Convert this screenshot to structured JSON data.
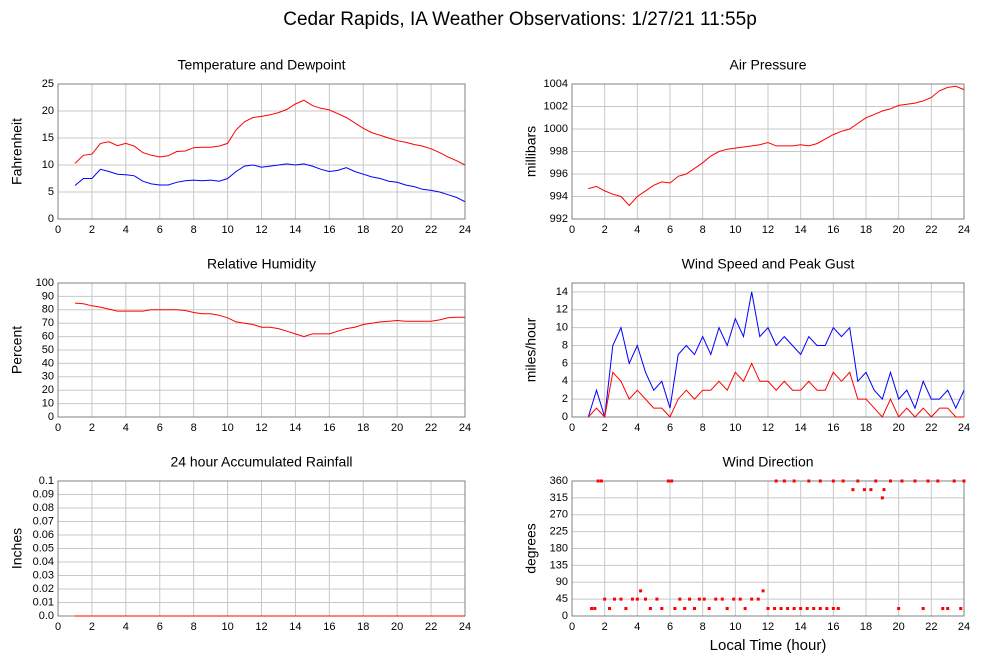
{
  "title": "Cedar Rapids, IA Weather Observations: 1/27/21 11:55p",
  "chart_data": [
    {
      "type": "line",
      "title": "Temperature and Dewpoint",
      "ylabel": "Fahrenheit",
      "x": [
        1,
        1.5,
        2,
        2.5,
        3,
        3.5,
        4,
        4.5,
        5,
        5.5,
        6,
        6.5,
        7,
        7.5,
        8,
        8.5,
        9,
        9.5,
        10,
        10.5,
        11,
        11.5,
        12,
        12.5,
        13,
        13.5,
        14,
        14.5,
        15,
        15.5,
        16,
        16.5,
        17,
        17.5,
        18,
        18.5,
        19,
        19.5,
        20,
        20.5,
        21,
        21.5,
        22,
        22.5,
        23,
        23.5,
        24
      ],
      "series": [
        {
          "color": "#ff0000",
          "values": [
            10.3,
            11.8,
            12,
            14,
            14.3,
            13.6,
            14,
            13.5,
            12.3,
            11.8,
            11.5,
            11.7,
            12.5,
            12.6,
            13.2,
            13.3,
            13.3,
            13.5,
            14,
            16.5,
            18,
            18.8,
            19,
            19.3,
            19.7,
            20.3,
            21.3,
            22,
            21,
            20.5,
            20.2,
            19.5,
            18.8,
            17.8,
            16.8,
            16,
            15.5,
            15,
            14.5,
            14.2,
            13.8,
            13.5,
            13,
            12.3,
            11.5,
            10.8,
            10
          ]
        },
        {
          "color": "#0000ff",
          "values": [
            6.2,
            7.5,
            7.5,
            9.2,
            8.8,
            8.3,
            8.2,
            8,
            7,
            6.5,
            6.3,
            6.3,
            6.8,
            7.1,
            7.2,
            7.1,
            7.2,
            7,
            7.5,
            8.8,
            9.8,
            10,
            9.6,
            9.8,
            10,
            10.2,
            10,
            10.2,
            9.8,
            9.2,
            8.8,
            9,
            9.5,
            8.8,
            8.3,
            7.8,
            7.5,
            7,
            6.8,
            6.3,
            6,
            5.5,
            5.3,
            5,
            4.5,
            4,
            3.2
          ]
        }
      ],
      "xlim": [
        0,
        24
      ],
      "xticks": [
        0,
        2,
        4,
        6,
        8,
        10,
        12,
        14,
        16,
        18,
        20,
        22,
        24
      ],
      "ylim": [
        0,
        25
      ],
      "yticks": [
        0,
        5,
        10,
        15,
        20,
        25
      ],
      "grid": true
    },
    {
      "type": "line",
      "title": "Air Pressure",
      "ylabel": "millibars",
      "x": [
        1,
        1.5,
        2,
        2.5,
        3,
        3.5,
        4,
        4.5,
        5,
        5.5,
        6,
        6.5,
        7,
        7.5,
        8,
        8.5,
        9,
        9.5,
        10,
        10.5,
        11,
        11.5,
        12,
        12.5,
        13,
        13.5,
        14,
        14.5,
        15,
        15.5,
        16,
        16.5,
        17,
        17.5,
        18,
        18.5,
        19,
        19.5,
        20,
        20.5,
        21,
        21.5,
        22,
        22.5,
        23,
        23.5,
        24
      ],
      "series": [
        {
          "color": "#ff0000",
          "values": [
            994.7,
            994.9,
            994.5,
            994.2,
            994,
            993.2,
            994,
            994.5,
            995,
            995.3,
            995.2,
            995.8,
            996,
            996.5,
            997,
            997.6,
            998,
            998.2,
            998.3,
            998.4,
            998.5,
            998.6,
            998.8,
            998.5,
            998.5,
            998.5,
            998.6,
            998.5,
            998.7,
            999.1,
            999.5,
            999.8,
            1000,
            1000.5,
            1001,
            1001.3,
            1001.6,
            1001.8,
            1002.1,
            1002.2,
            1002.3,
            1002.5,
            1002.8,
            1003.4,
            1003.7,
            1003.8,
            1003.5
          ]
        }
      ],
      "xlim": [
        0,
        24
      ],
      "xticks": [
        0,
        2,
        4,
        6,
        8,
        10,
        12,
        14,
        16,
        18,
        20,
        22,
        24
      ],
      "ylim": [
        992,
        1004
      ],
      "yticks": [
        992,
        994,
        996,
        998,
        1000,
        1002,
        1004
      ],
      "grid": true
    },
    {
      "type": "line",
      "title": "Relative Humidity",
      "ylabel": "Percent",
      "x": [
        1,
        1.5,
        2,
        2.5,
        3,
        3.5,
        4,
        4.5,
        5,
        5.5,
        6,
        6.5,
        7,
        7.5,
        8,
        8.5,
        9,
        9.5,
        10,
        10.5,
        11,
        11.5,
        12,
        12.5,
        13,
        13.5,
        14,
        14.5,
        15,
        15.5,
        16,
        16.5,
        17,
        17.5,
        18,
        18.5,
        19,
        19.5,
        20,
        20.5,
        21,
        21.5,
        22,
        22.5,
        23,
        23.5,
        24
      ],
      "series": [
        {
          "color": "#ff0000",
          "values": [
            85,
            84.5,
            83,
            82,
            80.5,
            79,
            79,
            79,
            79,
            80,
            80,
            80,
            80,
            79.5,
            78,
            77,
            77,
            76,
            74,
            71,
            70,
            69,
            67,
            67,
            66,
            64,
            62,
            60,
            62,
            62,
            62,
            64,
            66,
            67,
            69,
            70,
            71,
            71.5,
            72,
            71.5,
            71.5,
            71.5,
            71.5,
            72.5,
            74,
            74.5,
            74.5
          ]
        }
      ],
      "xlim": [
        0,
        24
      ],
      "xticks": [
        0,
        2,
        4,
        6,
        8,
        10,
        12,
        14,
        16,
        18,
        20,
        22,
        24
      ],
      "ylim": [
        0,
        100
      ],
      "yticks": [
        0,
        10,
        20,
        30,
        40,
        50,
        60,
        70,
        80,
        90,
        100
      ],
      "grid": true
    },
    {
      "type": "line",
      "title": "Wind Speed and Peak Gust",
      "ylabel": "miles/hour",
      "x": [
        1,
        1.5,
        2,
        2.5,
        3,
        3.5,
        4,
        4.5,
        5,
        5.5,
        6,
        6.5,
        7,
        7.5,
        8,
        8.5,
        9,
        9.5,
        10,
        10.5,
        11,
        11.5,
        12,
        12.5,
        13,
        13.5,
        14,
        14.5,
        15,
        15.5,
        16,
        16.5,
        17,
        17.5,
        18,
        18.5,
        19,
        19.5,
        20,
        20.5,
        21,
        21.5,
        22,
        22.5,
        23,
        23.5,
        24
      ],
      "series": [
        {
          "color": "#0000ff",
          "values": [
            0,
            3,
            0,
            8,
            10,
            6,
            8,
            5,
            3,
            4,
            1,
            7,
            8,
            7,
            9,
            7,
            10,
            8,
            11,
            9,
            14,
            9,
            10,
            8,
            9,
            8,
            7,
            9,
            8,
            8,
            10,
            9,
            10,
            4,
            5,
            3,
            2,
            5,
            2,
            3,
            1,
            4,
            2,
            2,
            3,
            1,
            3
          ]
        },
        {
          "color": "#ff0000",
          "values": [
            0,
            1,
            0,
            5,
            4,
            2,
            3,
            2,
            1,
            1,
            0,
            2,
            3,
            2,
            3,
            3,
            4,
            3,
            5,
            4,
            6,
            4,
            4,
            3,
            4,
            3,
            3,
            4,
            3,
            3,
            5,
            4,
            5,
            2,
            2,
            1,
            0,
            2,
            0,
            1,
            0,
            1,
            0,
            1,
            1,
            0,
            0
          ]
        }
      ],
      "xlim": [
        0,
        24
      ],
      "xticks": [
        0,
        2,
        4,
        6,
        8,
        10,
        12,
        14,
        16,
        18,
        20,
        22,
        24
      ],
      "ylim": [
        0,
        15
      ],
      "yticks": [
        0,
        2,
        4,
        6,
        8,
        10,
        12,
        14
      ],
      "grid": true
    },
    {
      "type": "line",
      "title": "24 hour Accumulated Rainfall",
      "ylabel": "Inches",
      "x": [
        1,
        24
      ],
      "series": [
        {
          "color": "#ff0000",
          "values": [
            0,
            0
          ]
        }
      ],
      "xlim": [
        0,
        24
      ],
      "xticks": [
        0,
        2,
        4,
        6,
        8,
        10,
        12,
        14,
        16,
        18,
        20,
        22,
        24
      ],
      "ylim": [
        0,
        0.1
      ],
      "yticks": [
        {
          "value": 0,
          "label": "0.0"
        },
        0.01,
        0.02,
        0.03,
        0.04,
        0.05,
        0.06,
        0.07,
        0.08,
        0.09,
        0.1
      ],
      "grid": true
    },
    {
      "type": "scatter",
      "title": "Wind Direction",
      "ylabel": "degrees",
      "xlabel": "Local Time (hour)",
      "color": "#ff0000",
      "x": [
        1.2,
        1.4,
        1.6,
        1.8,
        2,
        2.3,
        2.6,
        3,
        3.3,
        3.7,
        4,
        4.2,
        4.5,
        4.8,
        5.2,
        5.5,
        5.9,
        6.1,
        6.3,
        6.6,
        6.9,
        7.2,
        7.5,
        7.8,
        8.1,
        8.4,
        8.8,
        9.2,
        9.5,
        9.9,
        10.3,
        10.6,
        11,
        11.4,
        11.7,
        12,
        12.4,
        12.8,
        13.2,
        13.6,
        14,
        14.4,
        14.8,
        15.2,
        15.6,
        16,
        16.3,
        12.5,
        13,
        13.6,
        14.5,
        15.2,
        16,
        16.6,
        17.2,
        17.5,
        17.9,
        18.3,
        18.6,
        19,
        19.1,
        19.5,
        20,
        20.2,
        21,
        21.5,
        21.8,
        22.4,
        22.7,
        23,
        23.4,
        23.8,
        24
      ],
      "values": [
        20,
        20,
        360,
        360,
        45,
        20,
        45,
        45,
        20,
        45,
        45,
        67,
        45,
        20,
        45,
        20,
        360,
        360,
        20,
        45,
        20,
        45,
        20,
        45,
        45,
        20,
        45,
        45,
        20,
        45,
        45,
        20,
        45,
        45,
        67,
        20,
        20,
        20,
        20,
        20,
        20,
        20,
        20,
        20,
        20,
        20,
        20,
        360,
        360,
        360,
        360,
        360,
        360,
        360,
        337,
        360,
        337,
        337,
        360,
        315,
        337,
        360,
        20,
        360,
        360,
        20,
        360,
        360,
        20,
        20,
        360,
        20,
        360
      ],
      "xlim": [
        0,
        24
      ],
      "xticks": [
        0,
        2,
        4,
        6,
        8,
        10,
        12,
        14,
        16,
        18,
        20,
        22,
        24
      ],
      "ylim": [
        0,
        360
      ],
      "yticks": [
        0,
        45,
        90,
        135,
        180,
        225,
        270,
        315,
        360
      ],
      "grid": true
    }
  ]
}
